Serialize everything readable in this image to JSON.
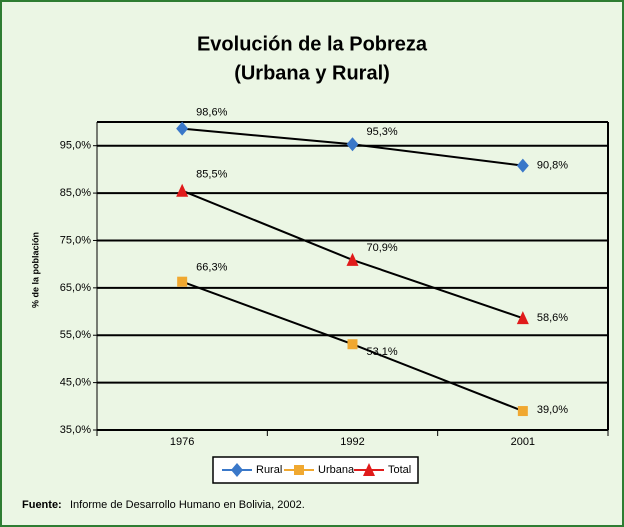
{
  "chart_data": {
    "type": "line",
    "title": "Evolución de la Pobreza",
    "subtitle": "(Urbana y Rural)",
    "y_label": "% de la población",
    "categories": [
      "1976",
      "1992",
      "2001"
    ],
    "series": [
      {
        "name": "Rural",
        "color": "#3a78c9",
        "marker": "diamond",
        "values": [
          98.6,
          95.3,
          90.8
        ],
        "value_labels": [
          "98,6%",
          "95,3%",
          "90,8%"
        ]
      },
      {
        "name": "Urbana",
        "color": "#f0a830",
        "marker": "square",
        "values": [
          66.3,
          53.1,
          39.0
        ],
        "value_labels": [
          "66,3%",
          "53,1%",
          "39,0%"
        ]
      },
      {
        "name": "Total",
        "color": "#e01b1b",
        "marker": "triangle",
        "values": [
          85.5,
          70.9,
          58.6
        ],
        "value_labels": [
          "85,5%",
          "70,9%",
          "58,6%"
        ]
      }
    ],
    "ylim": [
      35,
      100
    ],
    "yticks": [
      {
        "value": 35,
        "label": "35,0%"
      },
      {
        "value": 45,
        "label": "45,0%"
      },
      {
        "value": 55,
        "label": "55,0%"
      },
      {
        "value": 65,
        "label": "65,0%"
      },
      {
        "value": 75,
        "label": "75,0%"
      },
      {
        "value": 85,
        "label": "85,0%"
      },
      {
        "value": 95,
        "label": "95,0%"
      }
    ],
    "grid": true,
    "legend": "bottom",
    "source_label": "Fuente:",
    "source": "Informe de Desarrollo Humano en Bolivia, 2002."
  }
}
